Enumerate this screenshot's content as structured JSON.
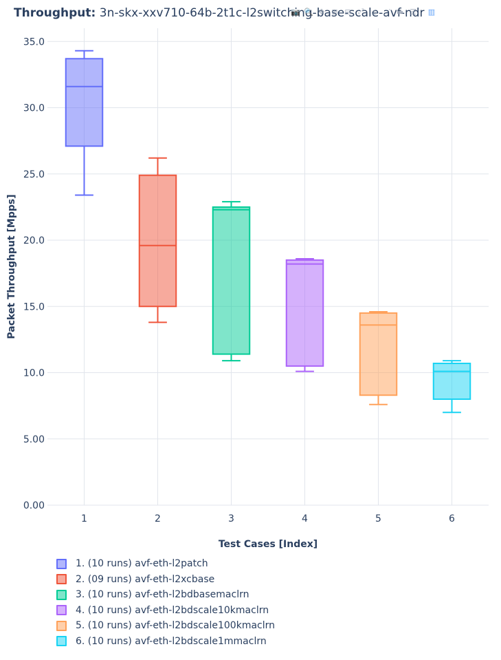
{
  "title": {
    "bold": "Throughput:",
    "text": "3n-skx-xxv710-64b-2t1c-l2switching-base-scale-avf-ndr"
  },
  "modebar": [
    {
      "name": "camera-icon",
      "glyph": "📷"
    },
    {
      "name": "zoom-icon",
      "glyph": "🔍"
    },
    {
      "name": "pan-icon",
      "glyph": "✥"
    },
    {
      "name": "zoom-in-icon",
      "glyph": "⊞"
    },
    {
      "name": "zoom-out-icon",
      "glyph": "⊟"
    },
    {
      "name": "autoscale-icon",
      "glyph": "⤢"
    },
    {
      "name": "reset-axes-icon",
      "glyph": "⌂"
    },
    {
      "name": "spike-lines-icon",
      "glyph": "⋰"
    },
    {
      "name": "hover-closest-icon",
      "glyph": "▬"
    },
    {
      "name": "hover-compare-icon",
      "glyph": "☰"
    },
    {
      "name": "plotly-logo-icon",
      "glyph": "▥"
    }
  ],
  "chart_data": {
    "type": "box",
    "xlabel": "Test Cases [Index]",
    "ylabel": "Packet Throughput [Mpps]",
    "ylim": [
      0,
      36
    ],
    "yticks": [
      "0.00",
      "5.00",
      "10.0",
      "15.0",
      "20.0",
      "25.0",
      "30.0",
      "35.0"
    ],
    "categories": [
      "1",
      "2",
      "3",
      "4",
      "5",
      "6"
    ],
    "grid": true,
    "legend_position": "bottom",
    "series": [
      {
        "name": "1. (10 runs) avf-eth-l2patch",
        "color": "#636efa",
        "min": 23.4,
        "q1": 27.1,
        "median": 31.6,
        "q3": 33.7,
        "max": 34.3
      },
      {
        "name": "2. (09 runs) avf-eth-l2xcbase",
        "color": "#ef553b",
        "min": 13.8,
        "q1": 15.0,
        "median": 19.6,
        "q3": 24.9,
        "max": 26.2
      },
      {
        "name": "3. (10 runs) avf-eth-l2bdbasemaclrn",
        "color": "#00cc96",
        "min": 10.9,
        "q1": 11.4,
        "median": 22.3,
        "q3": 22.5,
        "max": 22.9
      },
      {
        "name": "4. (10 runs) avf-eth-l2bdscale10kmaclrn",
        "color": "#ab63fa",
        "min": 10.1,
        "q1": 10.5,
        "median": 18.2,
        "q3": 18.5,
        "max": 18.6
      },
      {
        "name": "5. (10 runs) avf-eth-l2bdscale100kmaclrn",
        "color": "#ffa15a",
        "min": 7.6,
        "q1": 8.3,
        "median": 13.6,
        "q3": 14.5,
        "max": 14.6
      },
      {
        "name": "6. (10 runs) avf-eth-l2bdscale1mmaclrn",
        "color": "#19d3f3",
        "min": 7.0,
        "q1": 8.0,
        "median": 10.1,
        "q3": 10.7,
        "max": 10.9
      }
    ]
  }
}
